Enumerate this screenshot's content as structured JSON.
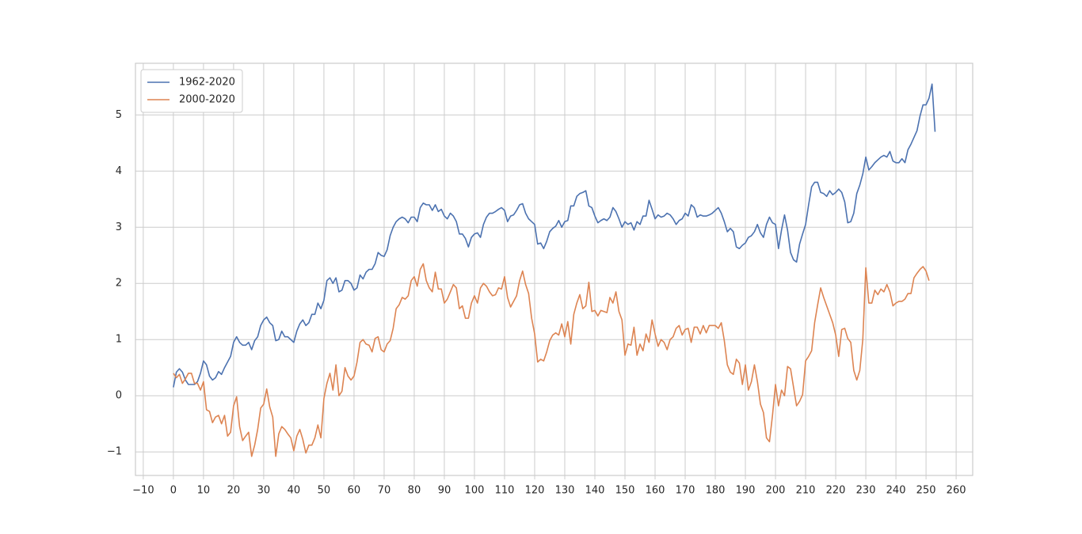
{
  "chart_data": {
    "type": "line",
    "x": [
      0,
      1,
      2,
      3,
      4,
      5,
      6,
      7,
      8,
      9,
      10,
      11,
      12,
      13,
      14,
      15,
      16,
      17,
      18,
      19,
      20,
      21,
      22,
      23,
      24,
      25,
      26,
      27,
      28,
      29,
      30,
      31,
      32,
      33,
      34,
      35,
      36,
      37,
      38,
      39,
      40,
      41,
      42,
      43,
      44,
      45,
      46,
      47,
      48,
      49,
      50,
      51,
      52,
      53,
      54,
      55,
      56,
      57,
      58,
      59,
      60,
      61,
      62,
      63,
      64,
      65,
      66,
      67,
      68,
      69,
      70,
      71,
      72,
      73,
      74,
      75,
      76,
      77,
      78,
      79,
      80,
      81,
      82,
      83,
      84,
      85,
      86,
      87,
      88,
      89,
      90,
      91,
      92,
      93,
      94,
      95,
      96,
      97,
      98,
      99,
      100,
      101,
      102,
      103,
      104,
      105,
      106,
      107,
      108,
      109,
      110,
      111,
      112,
      113,
      114,
      115,
      116,
      117,
      118,
      119,
      120,
      121,
      122,
      123,
      124,
      125,
      126,
      127,
      128,
      129,
      130,
      131,
      132,
      133,
      134,
      135,
      136,
      137,
      138,
      139,
      140,
      141,
      142,
      143,
      144,
      145,
      146,
      147,
      148,
      149,
      150,
      151,
      152,
      153,
      154,
      155,
      156,
      157,
      158,
      159,
      160,
      161,
      162,
      163,
      164,
      165,
      166,
      167,
      168,
      169,
      170,
      171,
      172,
      173,
      174,
      175,
      176,
      177,
      178,
      179,
      180,
      181,
      182,
      183,
      184,
      185,
      186,
      187,
      188,
      189,
      190,
      191,
      192,
      193,
      194,
      195,
      196,
      197,
      198,
      199,
      200,
      201,
      202,
      203,
      204,
      205,
      206,
      207,
      208,
      209,
      210,
      211,
      212,
      213,
      214,
      215,
      216,
      217,
      218,
      219,
      220,
      221,
      222,
      223,
      224,
      225,
      226,
      227,
      228,
      229,
      230,
      231,
      232,
      233,
      234,
      235,
      236,
      237,
      238,
      239,
      240,
      241,
      242,
      243,
      244,
      245,
      246,
      247,
      248,
      249,
      250,
      251,
      252,
      253
    ],
    "series": [
      {
        "name": "1962-2020",
        "color": "#4c72b0",
        "values": [
          0.15,
          0.42,
          0.48,
          0.42,
          0.28,
          0.2,
          0.2,
          0.2,
          0.25,
          0.4,
          0.62,
          0.55,
          0.35,
          0.28,
          0.32,
          0.43,
          0.38,
          0.5,
          0.6,
          0.7,
          0.95,
          1.05,
          0.95,
          0.9,
          0.9,
          0.95,
          0.82,
          0.98,
          1.05,
          1.25,
          1.35,
          1.4,
          1.3,
          1.25,
          0.98,
          1.0,
          1.15,
          1.05,
          1.05,
          1.0,
          0.95,
          1.15,
          1.28,
          1.35,
          1.25,
          1.3,
          1.45,
          1.45,
          1.65,
          1.55,
          1.7,
          2.05,
          2.1,
          2.0,
          2.1,
          1.85,
          1.88,
          2.05,
          2.05,
          2.0,
          1.88,
          1.92,
          2.15,
          2.08,
          2.2,
          2.25,
          2.25,
          2.35,
          2.55,
          2.5,
          2.48,
          2.6,
          2.85,
          3.0,
          3.1,
          3.15,
          3.18,
          3.15,
          3.08,
          3.18,
          3.18,
          3.1,
          3.35,
          3.43,
          3.4,
          3.4,
          3.3,
          3.4,
          3.28,
          3.32,
          3.2,
          3.15,
          3.25,
          3.2,
          3.1,
          2.88,
          2.88,
          2.8,
          2.65,
          2.82,
          2.88,
          2.9,
          2.82,
          3.05,
          3.18,
          3.25,
          3.25,
          3.28,
          3.32,
          3.35,
          3.3,
          3.1,
          3.2,
          3.22,
          3.3,
          3.4,
          3.42,
          3.25,
          3.15,
          3.1,
          3.05,
          2.7,
          2.72,
          2.62,
          2.75,
          2.92,
          2.98,
          3.02,
          3.12,
          3.0,
          3.1,
          3.12,
          3.38,
          3.38,
          3.55,
          3.6,
          3.62,
          3.65,
          3.38,
          3.35,
          3.2,
          3.08,
          3.12,
          3.15,
          3.12,
          3.18,
          3.35,
          3.28,
          3.15,
          3.0,
          3.1,
          3.05,
          3.08,
          2.95,
          3.1,
          3.05,
          3.2,
          3.2,
          3.48,
          3.32,
          3.15,
          3.22,
          3.18,
          3.2,
          3.25,
          3.22,
          3.15,
          3.05,
          3.12,
          3.15,
          3.25,
          3.2,
          3.4,
          3.35,
          3.18,
          3.22,
          3.2,
          3.2,
          3.22,
          3.25,
          3.3,
          3.35,
          3.25,
          3.1,
          2.92,
          2.98,
          2.92,
          2.65,
          2.62,
          2.68,
          2.72,
          2.82,
          2.85,
          2.92,
          3.05,
          2.9,
          2.82,
          3.05,
          3.18,
          3.08,
          3.05,
          2.62,
          2.95,
          3.22,
          2.95,
          2.55,
          2.42,
          2.38,
          2.7,
          2.88,
          3.05,
          3.4,
          3.72,
          3.8,
          3.8,
          3.62,
          3.6,
          3.55,
          3.65,
          3.58,
          3.62,
          3.68,
          3.62,
          3.45,
          3.08,
          3.1,
          3.25,
          3.6,
          3.75,
          3.95,
          4.25,
          4.02,
          4.08,
          4.15,
          4.2,
          4.25,
          4.28,
          4.25,
          4.35,
          4.18,
          4.15,
          4.15,
          4.22,
          4.15,
          4.38,
          4.48,
          4.6,
          4.72,
          4.98,
          5.18,
          5.18,
          5.3,
          5.55,
          4.7
        ]
      },
      {
        "name": "2000-2020",
        "color": "#dd8452",
        "values": [
          0.4,
          0.32,
          0.38,
          0.22,
          0.3,
          0.4,
          0.4,
          0.22,
          0.22,
          0.1,
          0.25,
          -0.25,
          -0.28,
          -0.48,
          -0.38,
          -0.35,
          -0.5,
          -0.35,
          -0.72,
          -0.65,
          -0.18,
          -0.02,
          -0.55,
          -0.8,
          -0.72,
          -0.65,
          -1.08,
          -0.88,
          -0.6,
          -0.22,
          -0.15,
          0.12,
          -0.2,
          -0.38,
          -1.08,
          -0.68,
          -0.55,
          -0.6,
          -0.68,
          -0.75,
          -0.98,
          -0.72,
          -0.6,
          -0.78,
          -1.02,
          -0.88,
          -0.88,
          -0.75,
          -0.52,
          -0.75,
          -0.05,
          0.22,
          0.4,
          0.1,
          0.55,
          0.0,
          0.08,
          0.5,
          0.35,
          0.28,
          0.35,
          0.6,
          0.95,
          1.0,
          0.92,
          0.9,
          0.78,
          1.02,
          1.05,
          0.82,
          0.78,
          0.92,
          0.98,
          1.2,
          1.55,
          1.62,
          1.75,
          1.72,
          1.78,
          2.05,
          2.12,
          1.95,
          2.25,
          2.35,
          2.05,
          1.92,
          1.85,
          2.2,
          1.9,
          1.9,
          1.65,
          1.72,
          1.85,
          1.98,
          1.92,
          1.55,
          1.6,
          1.38,
          1.38,
          1.65,
          1.78,
          1.65,
          1.92,
          2.0,
          1.95,
          1.85,
          1.78,
          1.8,
          1.92,
          1.9,
          2.12,
          1.75,
          1.58,
          1.68,
          1.78,
          2.05,
          2.22,
          1.98,
          1.82,
          1.38,
          1.1,
          0.6,
          0.65,
          0.62,
          0.78,
          0.98,
          1.08,
          1.12,
          1.08,
          1.28,
          1.05,
          1.32,
          0.92,
          1.45,
          1.65,
          1.8,
          1.55,
          1.6,
          2.02,
          1.5,
          1.52,
          1.42,
          1.52,
          1.5,
          1.48,
          1.75,
          1.65,
          1.85,
          1.5,
          1.35,
          0.72,
          0.92,
          0.9,
          1.22,
          0.72,
          0.92,
          0.8,
          1.1,
          0.95,
          1.35,
          1.1,
          0.88,
          1.0,
          0.95,
          0.82,
          1.0,
          1.05,
          1.2,
          1.25,
          1.08,
          1.18,
          1.2,
          0.95,
          1.22,
          1.22,
          1.1,
          1.25,
          1.12,
          1.25,
          1.25,
          1.25,
          1.2,
          1.3,
          0.98,
          0.55,
          0.42,
          0.38,
          0.65,
          0.58,
          0.2,
          0.55,
          0.1,
          0.25,
          0.55,
          0.25,
          -0.15,
          -0.3,
          -0.75,
          -0.82,
          -0.35,
          0.2,
          -0.18,
          0.1,
          0.0,
          0.52,
          0.48,
          0.15,
          -0.18,
          -0.1,
          0.02,
          0.62,
          0.7,
          0.8,
          1.3,
          1.62,
          1.92,
          1.75,
          1.6,
          1.45,
          1.3,
          1.08,
          0.7,
          1.18,
          1.2,
          1.02,
          0.95,
          0.45,
          0.28,
          0.45,
          1.0,
          2.28,
          1.65,
          1.65,
          1.88,
          1.8,
          1.9,
          1.85,
          1.98,
          1.85,
          1.6,
          1.65,
          1.68,
          1.68,
          1.72,
          1.82,
          1.82,
          2.1,
          2.18,
          2.25,
          2.3,
          2.22,
          2.05,
          null,
          null
        ]
      }
    ],
    "xlim": [
      -12.6,
      265.5
    ],
    "xticks": [
      {
        "value": -10,
        "label": "−10"
      },
      0,
      10,
      20,
      30,
      40,
      50,
      60,
      70,
      80,
      90,
      100,
      110,
      120,
      130,
      140,
      150,
      160,
      170,
      180,
      190,
      200,
      210,
      220,
      230,
      240,
      250,
      260
    ],
    "ylim": [
      -1.42,
      5.92
    ],
    "yticks": [
      {
        "value": -1,
        "label": "−1"
      },
      0,
      1,
      2,
      3,
      4,
      5
    ],
    "grid": true,
    "legend": "upper left"
  }
}
